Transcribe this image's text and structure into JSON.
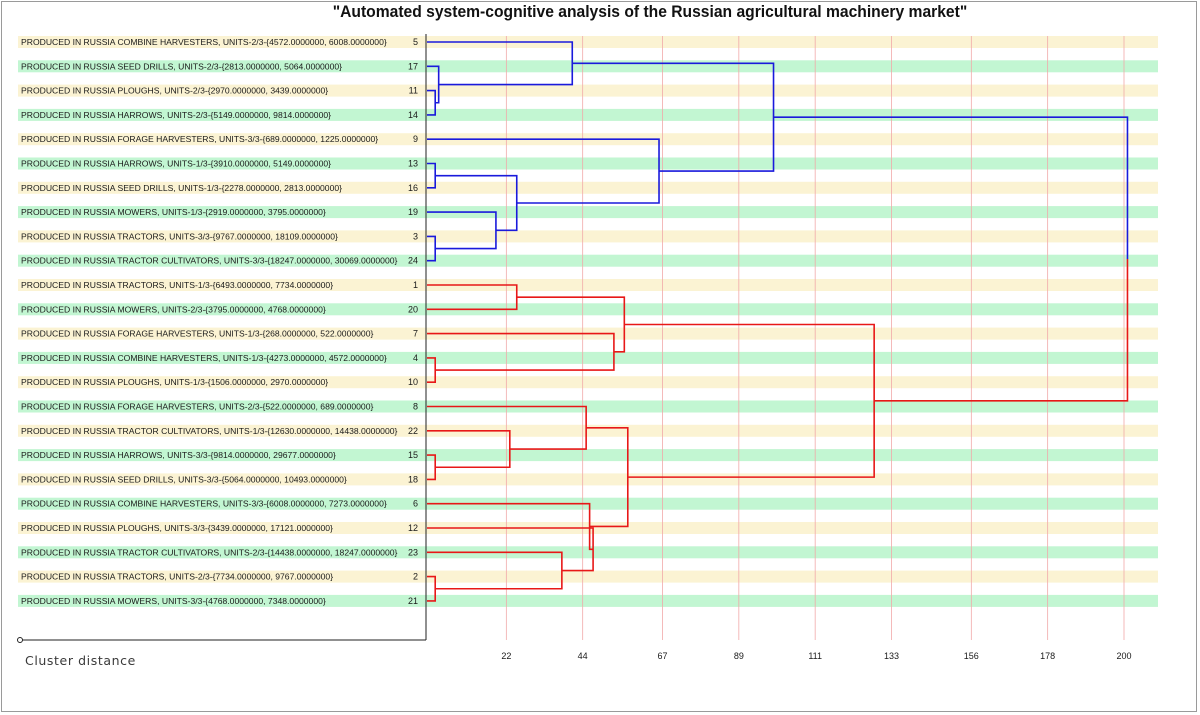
{
  "chart_data": {
    "type": "dendrogram",
    "title": "\"Automated system-cognitive analysis of the Russian agricultural machinery market\"",
    "xlabel": "Cluster distance",
    "x_ticks": [
      "22",
      "44",
      "67",
      "89",
      "111",
      "133",
      "156",
      "178",
      "200"
    ],
    "x_range": [
      0,
      200
    ],
    "grid": true,
    "leaves": [
      {
        "label": "PRODUCED IN RUSSIA COMBINE HARVESTERS, UNITS-2/3-{4572.0000000, 6008.0000000}",
        "id": 5
      },
      {
        "label": "PRODUCED IN RUSSIA SEED DRILLS, UNITS-2/3-{2813.0000000, 5064.0000000}",
        "id": 17
      },
      {
        "label": "PRODUCED IN RUSSIA PLOUGHS, UNITS-2/3-{2970.0000000, 3439.0000000}",
        "id": 11
      },
      {
        "label": "PRODUCED IN RUSSIA HARROWS, UNITS-2/3-{5149.0000000, 9814.0000000}",
        "id": 14
      },
      {
        "label": "PRODUCED IN RUSSIA FORAGE HARVESTERS, UNITS-3/3-{689.0000000, 1225.0000000}",
        "id": 9
      },
      {
        "label": "PRODUCED IN RUSSIA HARROWS, UNITS-1/3-{3910.0000000, 5149.0000000}",
        "id": 13
      },
      {
        "label": "PRODUCED IN RUSSIA SEED DRILLS, UNITS-1/3-{2278.0000000, 2813.0000000}",
        "id": 16
      },
      {
        "label": "PRODUCED IN RUSSIA MOWERS, UNITS-1/3-{2919.0000000, 3795.0000000}",
        "id": 19
      },
      {
        "label": "PRODUCED IN RUSSIA TRACTORS, UNITS-3/3-{9767.0000000, 18109.0000000}",
        "id": 3
      },
      {
        "label": "PRODUCED IN RUSSIA TRACTOR CULTIVATORS, UNITS-3/3-{18247.0000000, 30069.0000000}",
        "id": 24
      },
      {
        "label": "PRODUCED IN RUSSIA TRACTORS, UNITS-1/3-{6493.0000000, 7734.0000000}",
        "id": 1
      },
      {
        "label": "PRODUCED IN RUSSIA MOWERS, UNITS-2/3-{3795.0000000, 4768.0000000}",
        "id": 20
      },
      {
        "label": "PRODUCED IN RUSSIA FORAGE HARVESTERS, UNITS-1/3-{268.0000000, 522.0000000}",
        "id": 7
      },
      {
        "label": "PRODUCED IN RUSSIA COMBINE HARVESTERS, UNITS-1/3-{4273.0000000, 4572.0000000}",
        "id": 4
      },
      {
        "label": "PRODUCED IN RUSSIA PLOUGHS, UNITS-1/3-{1506.0000000, 2970.0000000}",
        "id": 10
      },
      {
        "label": "PRODUCED IN RUSSIA FORAGE HARVESTERS, UNITS-2/3-{522.0000000, 689.0000000}",
        "id": 8
      },
      {
        "label": "PRODUCED IN RUSSIA TRACTOR CULTIVATORS, UNITS-1/3-{12630.0000000, 14438.0000000}",
        "id": 22
      },
      {
        "label": "PRODUCED IN RUSSIA HARROWS, UNITS-3/3-{9814.0000000, 29677.0000000}",
        "id": 15
      },
      {
        "label": "PRODUCED IN RUSSIA SEED DRILLS, UNITS-3/3-{5064.0000000, 10493.0000000}",
        "id": 18
      },
      {
        "label": "PRODUCED IN RUSSIA COMBINE HARVESTERS, UNITS-3/3-{6008.0000000, 7273.0000000}",
        "id": 6
      },
      {
        "label": "PRODUCED IN RUSSIA PLOUGHS, UNITS-3/3-{3439.0000000, 17121.0000000}",
        "id": 12
      },
      {
        "label": "PRODUCED IN RUSSIA TRACTOR CULTIVATORS, UNITS-2/3-{14438.0000000, 18247.0000000}",
        "id": 23
      },
      {
        "label": "PRODUCED IN RUSSIA TRACTORS, UNITS-2/3-{7734.0000000, 9767.0000000}",
        "id": 2
      },
      {
        "label": "PRODUCED IN RUSSIA MOWERS, UNITS-3/3-{4768.0000000, 7348.0000000}",
        "id": 21
      }
    ],
    "merges": [
      {
        "a": [
          2
        ],
        "b": [
          3
        ],
        "distance": 1.5,
        "color": "blue"
      },
      {
        "a": [
          1
        ],
        "b": [
          2,
          3
        ],
        "distance": 2.5,
        "color": "blue"
      },
      {
        "a": [
          0
        ],
        "b": [
          1,
          2,
          3
        ],
        "distance": 41,
        "color": "blue"
      },
      {
        "a": [
          5
        ],
        "b": [
          6
        ],
        "distance": 1.5,
        "color": "blue"
      },
      {
        "a": [
          8
        ],
        "b": [
          9
        ],
        "distance": 1.5,
        "color": "blue"
      },
      {
        "a": [
          7
        ],
        "b": [
          8,
          9
        ],
        "distance": 19,
        "color": "blue"
      },
      {
        "a": [
          5,
          6
        ],
        "b": [
          7,
          8,
          9
        ],
        "distance": 25,
        "color": "blue"
      },
      {
        "a": [
          4
        ],
        "b": [
          5,
          6,
          7,
          8,
          9
        ],
        "distance": 66,
        "color": "blue"
      },
      {
        "a": [
          0,
          1,
          2,
          3
        ],
        "b": [
          4,
          5,
          6,
          7,
          8,
          9
        ],
        "distance": 99,
        "color": "blue"
      },
      {
        "a": [
          10
        ],
        "b": [
          11
        ],
        "distance": 25,
        "color": "red"
      },
      {
        "a": [
          13
        ],
        "b": [
          14
        ],
        "distance": 1.5,
        "color": "red"
      },
      {
        "a": [
          12
        ],
        "b": [
          13,
          14
        ],
        "distance": 53,
        "color": "red"
      },
      {
        "a": [
          10,
          11
        ],
        "b": [
          12,
          13,
          14
        ],
        "distance": 56,
        "color": "red"
      },
      {
        "a": [
          17
        ],
        "b": [
          18
        ],
        "distance": 1.5,
        "color": "red"
      },
      {
        "a": [
          16
        ],
        "b": [
          17,
          18
        ],
        "distance": 23,
        "color": "red"
      },
      {
        "a": [
          15
        ],
        "b": [
          16,
          17,
          18
        ],
        "distance": 45,
        "color": "red"
      },
      {
        "a": [
          22
        ],
        "b": [
          23
        ],
        "distance": 1.5,
        "color": "red"
      },
      {
        "a": [
          21
        ],
        "b": [
          22,
          23
        ],
        "distance": 38,
        "color": "red"
      },
      {
        "a": [
          20
        ],
        "b": [
          21,
          22,
          23
        ],
        "distance": 47,
        "color": "red"
      },
      {
        "a": [
          19
        ],
        "b": [
          20,
          21,
          22,
          23
        ],
        "distance": 46,
        "color": "red"
      },
      {
        "a": [
          15,
          16,
          17,
          18
        ],
        "b": [
          19,
          20,
          21,
          22,
          23
        ],
        "distance": 57,
        "color": "red"
      },
      {
        "a": [
          10,
          11,
          12,
          13,
          14
        ],
        "b": [
          15,
          16,
          17,
          18,
          19,
          20,
          21,
          22,
          23
        ],
        "distance": 128,
        "color": "red"
      },
      {
        "a": [
          0,
          1,
          2,
          3,
          4,
          5,
          6,
          7,
          8,
          9
        ],
        "b": [
          10,
          11,
          12,
          13,
          14,
          15,
          16,
          17,
          18,
          19,
          20,
          21,
          22,
          23
        ],
        "distance": 201,
        "color": "mixed"
      }
    ],
    "colors": {
      "cluster_top": "#1a1adc",
      "cluster_bottom": "#e81818",
      "row_band_light": "#fbf3d3",
      "row_band_green": "#c2f6d2",
      "grid_line": "#f1a9a9",
      "axis": "#222222",
      "label_text": "#1a1a1a"
    }
  }
}
